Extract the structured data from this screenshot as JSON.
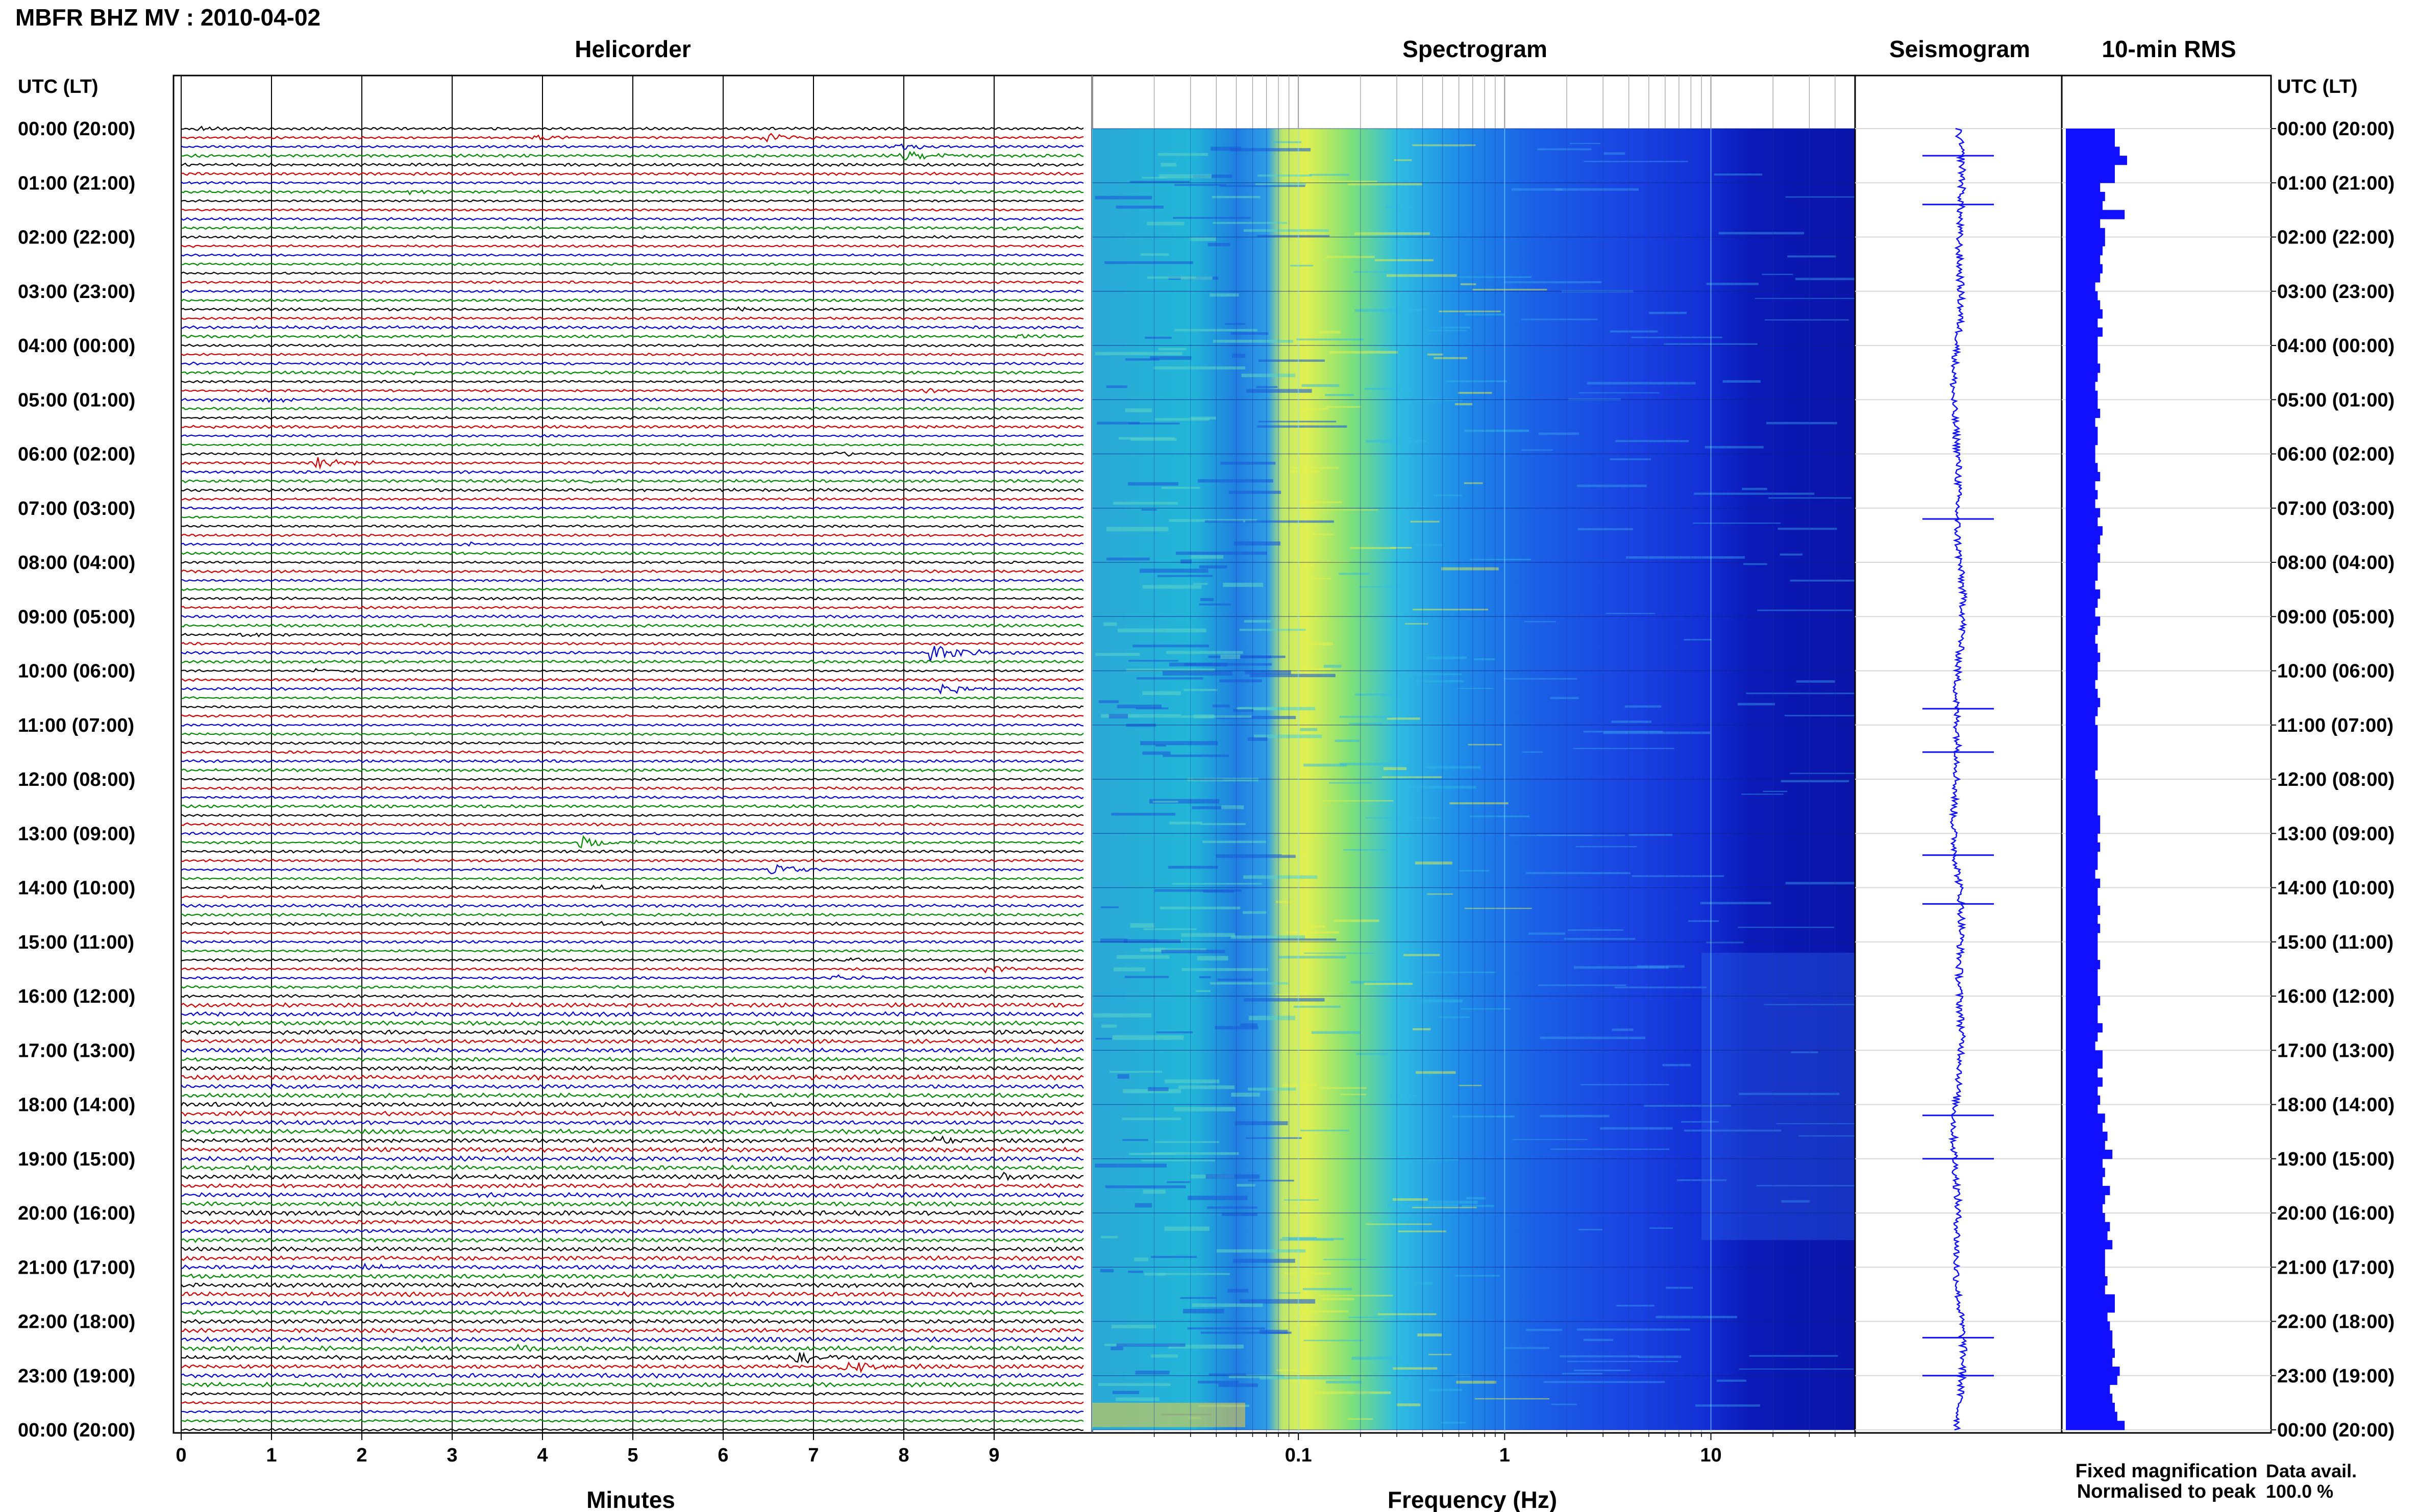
{
  "header": {
    "station": "MBFR BHZ MV : 2010-04-02",
    "time_column": "UTC (LT)"
  },
  "panels": {
    "helicorder": "Helicorder",
    "spectrogram": "Spectrogram",
    "seismogram": "Seismogram",
    "rms": "10-min RMS"
  },
  "footer": {
    "minutes_label": "Minutes",
    "frequency_label": "Frequency (Hz)",
    "legend_fixed": "Fixed magnification",
    "legend_fixed_color": "#1010ff",
    "legend_norm": "Normalised to peak",
    "legend_norm_color": "#ff0000",
    "data_avail_label": "Data avail.",
    "data_avail_value": "100.0 %"
  },
  "chart_data": [
    {
      "type": "line",
      "name": "helicorder",
      "xlabel": "Minutes",
      "x_ticks": [
        "0",
        "1",
        "2",
        "3",
        "4",
        "5",
        "6",
        "7",
        "8",
        "9"
      ],
      "xlim": [
        0,
        10
      ],
      "y_ticks": [
        "00:00 (20:00)",
        "01:00 (21:00)",
        "02:00 (22:00)",
        "03:00 (23:00)",
        "04:00 (00:00)",
        "05:00 (01:00)",
        "06:00 (02:00)",
        "07:00 (03:00)",
        "08:00 (04:00)",
        "09:00 (05:00)",
        "10:00 (06:00)",
        "11:00 (07:00)",
        "12:00 (08:00)",
        "13:00 (09:00)",
        "14:00 (10:00)",
        "15:00 (11:00)",
        "16:00 (12:00)",
        "17:00 (13:00)",
        "18:00 (14:00)",
        "19:00 (15:00)",
        "20:00 (16:00)",
        "21:00 (17:00)",
        "22:00 (18:00)",
        "23:00 (19:00)",
        "00:00 (20:00)"
      ],
      "trace_colors": [
        "#000000",
        "#cc0000",
        "#0000cc",
        "#008800"
      ],
      "traces_per_hour": 6,
      "events": [
        {
          "line": 0,
          "minute": 0.15,
          "amp": 4,
          "c": 0
        },
        {
          "line": 1,
          "minute": 3.9,
          "amp": 6,
          "c": 2
        },
        {
          "line": 1,
          "minute": 6.4,
          "amp": 10,
          "c": 3
        },
        {
          "line": 2,
          "minute": 7.9,
          "amp": 8,
          "c": 0
        },
        {
          "line": 3,
          "minute": 8.0,
          "amp": 12,
          "c": 0
        },
        {
          "line": 3,
          "minute": 7.95,
          "amp": 4,
          "c": 1
        },
        {
          "line": 7,
          "minute": 2.5,
          "amp": 4,
          "c": 0
        },
        {
          "line": 11,
          "minute": 9.1,
          "amp": 4,
          "c": 0
        },
        {
          "line": 20,
          "minute": 6.0,
          "amp": 4,
          "c": 1
        },
        {
          "line": 23,
          "minute": 9.2,
          "amp": 5,
          "c": 0
        },
        {
          "line": 27,
          "minute": 2.5,
          "amp": 5,
          "c": 0
        },
        {
          "line": 30,
          "minute": 0.9,
          "amp": 7,
          "c": 1
        },
        {
          "line": 29,
          "minute": 8.2,
          "amp": 4,
          "c": 0
        },
        {
          "line": 36,
          "minute": 7.2,
          "amp": 5,
          "c": 1
        },
        {
          "line": 37,
          "minute": 1.5,
          "amp": 12,
          "c": 3
        },
        {
          "line": 39,
          "minute": 4.5,
          "amp": 4,
          "c": 1
        },
        {
          "line": 46,
          "minute": 3.1,
          "amp": 4,
          "c": 1
        },
        {
          "line": 56,
          "minute": 0.6,
          "amp": 4,
          "c": 0
        },
        {
          "line": 58,
          "minute": 8.3,
          "amp": 22,
          "c": 3
        },
        {
          "line": 60,
          "minute": 1.5,
          "amp": 4,
          "c": 2
        },
        {
          "line": 62,
          "minute": 8.4,
          "amp": 12,
          "c": 1
        },
        {
          "line": 79,
          "minute": 4.4,
          "amp": 14,
          "c": 0
        },
        {
          "line": 82,
          "minute": 6.5,
          "amp": 14,
          "c": 1
        },
        {
          "line": 84,
          "minute": 4.5,
          "amp": 6,
          "c": 2
        },
        {
          "line": 88,
          "minute": 4.6,
          "amp": 4,
          "c": 3
        },
        {
          "line": 92,
          "minute": 7.3,
          "amp": 5,
          "c": 0
        },
        {
          "line": 93,
          "minute": 8.9,
          "amp": 7,
          "c": 1
        },
        {
          "line": 94,
          "minute": 7.2,
          "amp": 6,
          "c": 2
        },
        {
          "line": 106,
          "minute": 1.0,
          "amp": 4,
          "c": 3
        },
        {
          "line": 112,
          "minute": 8.3,
          "amp": 10,
          "c": 0
        },
        {
          "line": 116,
          "minute": 9.1,
          "amp": 6,
          "c": 1
        },
        {
          "line": 126,
          "minute": 2.0,
          "amp": 4,
          "c": 0
        },
        {
          "line": 126,
          "minute": 2.3,
          "amp": 5,
          "c": 2
        },
        {
          "line": 135,
          "minute": 3.7,
          "amp": 5,
          "c": 3
        },
        {
          "line": 136,
          "minute": 6.8,
          "amp": 12,
          "c": 0
        },
        {
          "line": 137,
          "minute": 7.3,
          "amp": 16,
          "c": 2
        }
      ]
    },
    {
      "type": "heatmap",
      "name": "spectrogram",
      "xlabel": "Frequency (Hz)",
      "x_scale": "log",
      "xlim": [
        0.01,
        50
      ],
      "x_ticks": [
        "0.1",
        "1",
        "10"
      ],
      "colormap": "jet",
      "peak_band_hz": [
        0.12,
        0.5
      ]
    },
    {
      "type": "line",
      "name": "seismogram",
      "color": "#1010ff",
      "spikes_hours": [
        0.5,
        1.4,
        7.2,
        10.7,
        11.5,
        13.4,
        14.3,
        18.2,
        19.0,
        22.3,
        23.0
      ]
    },
    {
      "type": "bar",
      "name": "10-min RMS",
      "color": "#1010ff",
      "orientation": "horizontal",
      "values": [
        2.0,
        2.0,
        2.2,
        2.5,
        2.0,
        2.0,
        1.4,
        1.6,
        1.5,
        2.4,
        1.4,
        1.6,
        1.6,
        1.5,
        1.4,
        1.5,
        1.4,
        1.2,
        1.3,
        1.4,
        1.5,
        1.3,
        1.5,
        1.3,
        1.3,
        1.3,
        1.4,
        1.3,
        1.2,
        1.3,
        1.3,
        1.4,
        1.2,
        1.3,
        1.3,
        1.2,
        1.2,
        1.3,
        1.4,
        1.2,
        1.3,
        1.2,
        1.4,
        1.3,
        1.5,
        1.4,
        1.3,
        1.4,
        1.3,
        1.3,
        1.2,
        1.4,
        1.3,
        1.2,
        1.4,
        1.3,
        1.2,
        1.3,
        1.4,
        1.3,
        1.3,
        1.2,
        1.3,
        1.4,
        1.3,
        1.2,
        1.3,
        1.3,
        1.3,
        1.3,
        1.3,
        1.2,
        1.3,
        1.3,
        1.3,
        1.3,
        1.4,
        1.4,
        1.3,
        1.4,
        1.3,
        1.3,
        1.2,
        1.4,
        1.3,
        1.3,
        1.4,
        1.3,
        1.4,
        1.3,
        1.3,
        1.3,
        1.4,
        1.3,
        1.3,
        1.3,
        1.4,
        1.3,
        1.3,
        1.5,
        1.3,
        1.2,
        1.5,
        1.5,
        1.3,
        1.5,
        1.3,
        1.4,
        1.3,
        1.6,
        1.5,
        1.7,
        1.6,
        1.9,
        1.5,
        1.6,
        1.5,
        1.8,
        1.6,
        1.5,
        1.6,
        1.8,
        1.7,
        1.9,
        1.6,
        1.6,
        1.6,
        1.7,
        1.6,
        2.0,
        2.0,
        1.7,
        1.8,
        1.9,
        1.9,
        2.0,
        1.9,
        2.2,
        2.1,
        1.8,
        1.9,
        2.0,
        2.1,
        2.4
      ]
    }
  ]
}
